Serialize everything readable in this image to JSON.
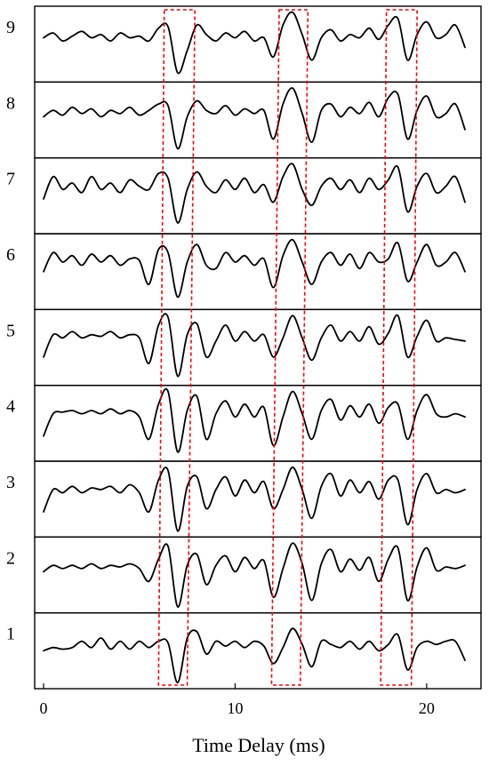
{
  "chart_data": {
    "type": "line",
    "title": "",
    "xlabel": "Time Delay (ms)",
    "ylabel": "",
    "xlim": [
      -0.5,
      22.8
    ],
    "x_ticks": [
      "0",
      "10",
      "20"
    ],
    "x_tick_values": [
      0,
      10,
      20
    ],
    "grid": false,
    "legend": "none",
    "panel_labels": [
      "9",
      "8",
      "7",
      "6",
      "5",
      "4",
      "3",
      "2",
      "1"
    ],
    "series_style": {
      "color": "#000000"
    },
    "highlight_color": "#ff0000",
    "x": [
      0,
      0.5,
      1,
      1.5,
      2,
      2.5,
      3,
      3.5,
      4,
      4.5,
      5,
      5.5,
      6,
      6.5,
      7,
      7.5,
      8,
      8.5,
      9,
      9.5,
      10,
      10.5,
      11,
      11.5,
      12,
      12.5,
      13,
      13.5,
      14,
      14.5,
      15,
      15.5,
      16,
      16.5,
      17,
      17.5,
      18,
      18.5,
      19,
      19.5,
      20,
      20.5,
      21,
      21.5,
      22
    ],
    "series": [
      {
        "panel": "9",
        "values": [
          0.2,
          0.35,
          0.1,
          0.25,
          0.4,
          0.2,
          0.3,
          0.1,
          0.35,
          0.2,
          0.25,
          0.1,
          0.5,
          0.55,
          -0.9,
          -0.2,
          0.6,
          0.3,
          0.1,
          0.35,
          0.2,
          0.4,
          0.1,
          0.2,
          -0.4,
          0.6,
          1.0,
          0.3,
          -0.5,
          0.2,
          0.45,
          0.1,
          0.3,
          0.2,
          0.5,
          0.15,
          0.6,
          0.8,
          -0.5,
          0.3,
          0.7,
          0.2,
          0.3,
          0.6,
          -0.1
        ]
      },
      {
        "panel": "8",
        "values": [
          0.1,
          0.3,
          0.15,
          0.4,
          0.2,
          0.35,
          0.1,
          0.3,
          0.2,
          0.4,
          0.15,
          0.3,
          0.5,
          0.45,
          -0.9,
          0.1,
          0.6,
          0.3,
          0.2,
          0.45,
          0.15,
          0.35,
          0.2,
          0.3,
          -0.6,
          0.5,
          1.0,
          0.2,
          -0.7,
          0.3,
          0.5,
          0.1,
          0.4,
          0.2,
          0.55,
          0.1,
          0.7,
          0.8,
          -0.6,
          0.3,
          0.75,
          0.1,
          0.2,
          0.5,
          -0.3
        ]
      },
      {
        "panel": "7",
        "values": [
          -0.1,
          0.6,
          0.2,
          0.4,
          0.1,
          0.6,
          0.2,
          0.4,
          0.1,
          0.5,
          0.3,
          0.2,
          0.7,
          0.55,
          -0.85,
          0.2,
          0.75,
          0.3,
          0.1,
          0.5,
          0.2,
          0.55,
          0.1,
          0.35,
          -0.2,
          0.6,
          1.0,
          0.2,
          -0.3,
          0.3,
          0.55,
          0.2,
          0.5,
          0.1,
          0.55,
          0.2,
          0.5,
          0.9,
          -0.5,
          0.3,
          0.7,
          0.1,
          0.3,
          0.6,
          -0.2
        ]
      },
      {
        "panel": "6",
        "values": [
          0.0,
          0.6,
          0.3,
          0.5,
          0.2,
          0.55,
          0.3,
          0.5,
          0.2,
          0.4,
          0.35,
          -0.4,
          0.7,
          0.6,
          -0.8,
          0.3,
          0.85,
          0.2,
          0.1,
          0.6,
          0.3,
          0.5,
          0.2,
          0.4,
          -0.5,
          0.5,
          1.0,
          0.3,
          -0.4,
          0.3,
          0.6,
          0.2,
          0.55,
          0.1,
          0.6,
          0.3,
          0.4,
          0.9,
          -0.3,
          0.3,
          0.85,
          0.2,
          0.3,
          0.6,
          0.0
        ]
      },
      {
        "panel": "5",
        "values": [
          -0.3,
          0.4,
          0.3,
          0.5,
          0.3,
          0.4,
          0.35,
          0.5,
          0.3,
          0.4,
          0.3,
          -0.5,
          0.7,
          0.95,
          -0.9,
          0.4,
          0.75,
          -0.3,
          0.2,
          0.7,
          0.2,
          0.5,
          0.2,
          0.4,
          -0.3,
          0.3,
          1.0,
          0.3,
          -0.4,
          0.3,
          0.7,
          0.2,
          0.5,
          0.2,
          0.65,
          0.1,
          0.45,
          1.0,
          -0.3,
          0.35,
          0.85,
          0.2,
          0.3,
          0.25,
          0.2
        ]
      },
      {
        "panel": "4",
        "values": [
          -0.4,
          0.3,
          0.35,
          0.4,
          0.3,
          0.4,
          0.3,
          0.45,
          0.3,
          0.4,
          0.2,
          -0.5,
          0.6,
          1.0,
          -0.9,
          0.4,
          0.85,
          -0.5,
          0.3,
          0.7,
          0.2,
          0.6,
          0.2,
          0.5,
          -0.7,
          0.2,
          1.0,
          0.3,
          -0.5,
          0.4,
          0.75,
          0.1,
          0.55,
          0.2,
          0.6,
          0.0,
          0.5,
          0.6,
          -0.5,
          0.4,
          0.9,
          0.3,
          0.2,
          0.3,
          0.2
        ]
      },
      {
        "panel": "3",
        "values": [
          -0.4,
          0.3,
          0.2,
          0.4,
          0.2,
          0.35,
          0.3,
          0.4,
          0.2,
          0.45,
          0.2,
          -0.4,
          0.6,
          0.9,
          -1.0,
          0.4,
          0.7,
          -0.3,
          0.3,
          0.7,
          0.1,
          0.6,
          0.2,
          0.55,
          -0.3,
          0.3,
          1.0,
          0.3,
          -0.6,
          0.4,
          0.8,
          0.1,
          0.6,
          0.2,
          0.55,
          0.0,
          0.6,
          0.6,
          -0.8,
          0.3,
          0.8,
          0.2,
          0.3,
          0.2,
          0.3
        ]
      },
      {
        "panel": "2",
        "values": [
          0.1,
          0.3,
          0.2,
          0.3,
          0.2,
          0.35,
          0.2,
          0.3,
          0.25,
          0.35,
          0.2,
          -0.2,
          0.5,
          0.9,
          -1.0,
          0.3,
          0.65,
          -0.3,
          0.3,
          0.6,
          0.1,
          0.55,
          0.2,
          0.45,
          -0.7,
          0.2,
          1.0,
          0.35,
          -0.8,
          0.35,
          0.8,
          0.1,
          0.5,
          0.15,
          0.55,
          -0.2,
          0.5,
          0.85,
          -0.8,
          0.25,
          0.85,
          0.15,
          0.25,
          0.2,
          0.3
        ]
      },
      {
        "panel": "1",
        "values": [
          0.0,
          0.1,
          0.05,
          0.1,
          0.3,
          0.1,
          0.4,
          0.05,
          0.3,
          0.05,
          0.3,
          0.1,
          0.3,
          0.25,
          -1.0,
          0.4,
          0.6,
          -0.1,
          0.3,
          0.15,
          0.3,
          0.1,
          0.3,
          0.15,
          -0.4,
          0.1,
          0.7,
          0.2,
          -0.5,
          0.3,
          0.2,
          0.1,
          0.3,
          0.05,
          0.3,
          0.0,
          0.2,
          0.5,
          -0.6,
          0.1,
          0.3,
          0.2,
          0.3,
          0.3,
          -0.3
        ]
      }
    ],
    "highlight_boxes": [
      {
        "x_top": [
          6.3,
          7.9
        ],
        "x_bottom": [
          6.0,
          7.5
        ]
      },
      {
        "x_top": [
          12.3,
          13.8
        ],
        "x_bottom": [
          11.9,
          13.4
        ]
      },
      {
        "x_top": [
          17.9,
          19.5
        ],
        "x_bottom": [
          17.6,
          19.2
        ]
      }
    ]
  }
}
